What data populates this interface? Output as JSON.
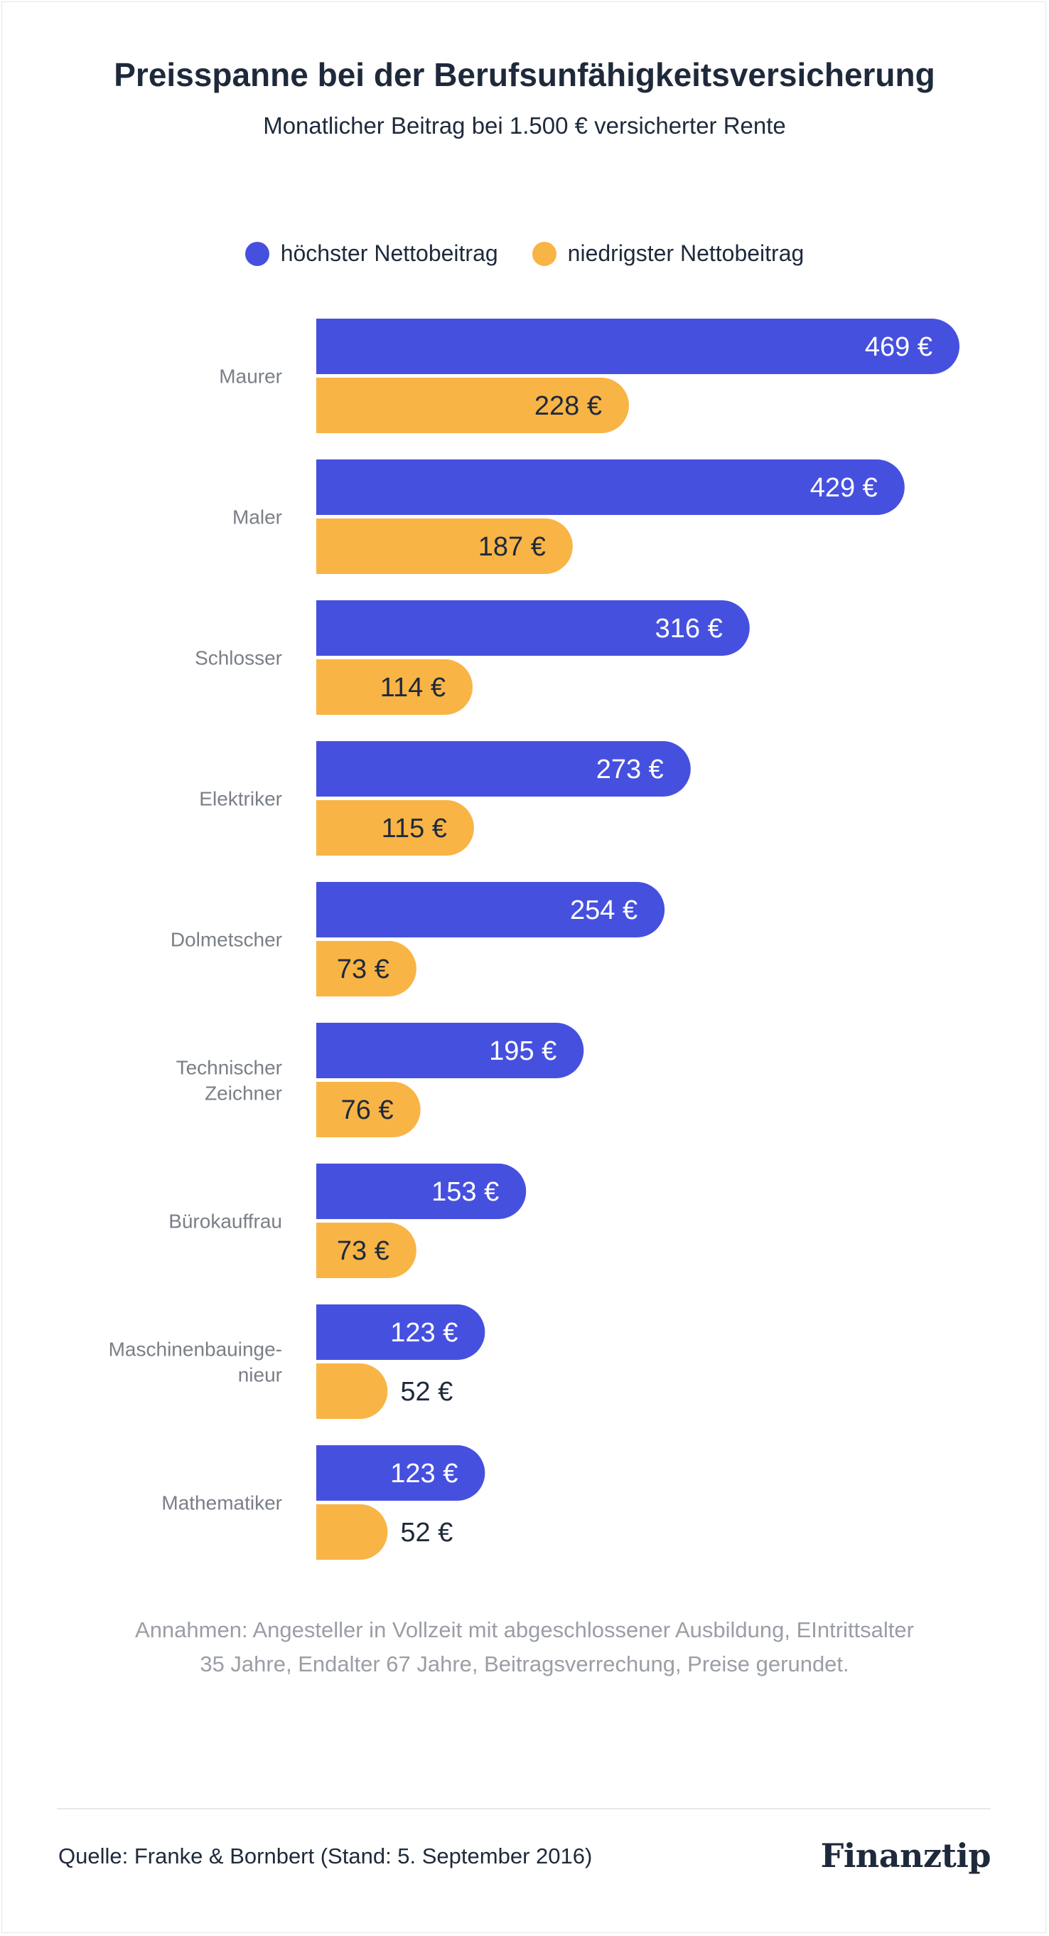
{
  "header": {
    "title": "Preisspanne bei der Berufsunfähigkeitsversicherung",
    "subtitle": "Monatlicher Beitrag bei 1.500 € versicherter Rente"
  },
  "legend": [
    {
      "label": "höchster Nettobeitrag",
      "color": "#4650df"
    },
    {
      "label": "niedrigster Nettobeitrag",
      "color": "#f9b446"
    }
  ],
  "chart_data": {
    "type": "bar",
    "orientation": "horizontal",
    "categories": [
      "Maurer",
      "Maler",
      "Schlosser",
      "Elektriker",
      "Dolmetscher",
      "Technischer Zeichner",
      "Bürokauffrau",
      "Maschinenbauinge-nieur",
      "Mathematiker"
    ],
    "category_lines": [
      [
        "Maurer"
      ],
      [
        "Maler"
      ],
      [
        "Schlosser"
      ],
      [
        "Elektriker"
      ],
      [
        "Dolmetscher"
      ],
      [
        "Technischer",
        "Zeichner"
      ],
      [
        "Bürokauffrau"
      ],
      [
        "Maschinenbauinge-",
        "nieur"
      ],
      [
        "Mathematiker"
      ]
    ],
    "series": [
      {
        "name": "höchster Nettobeitrag",
        "color": "#4650df",
        "values": [
          469,
          429,
          316,
          273,
          254,
          195,
          153,
          123,
          123
        ],
        "labels": [
          "469 €",
          "429 €",
          "316 €",
          "273 €",
          "254 €",
          "195 €",
          "153 €",
          "123 €",
          "123 €"
        ]
      },
      {
        "name": "niedrigster Nettobeitrag",
        "color": "#f9b446",
        "values": [
          228,
          187,
          114,
          115,
          73,
          76,
          73,
          52,
          52
        ],
        "labels": [
          "228 €",
          "187 €",
          "114 €",
          "115 €",
          "73 €",
          "76 €",
          "73 €",
          "52 €",
          "52 €"
        ]
      }
    ],
    "xlim": [
      0,
      469
    ],
    "grid": false,
    "legend_position": "top-center"
  },
  "footer": {
    "notes": "Annahmen: Angesteller in Vollzeit mit abgeschlossener Ausbildung, EIntrittsalter 35 Jahre, Endalter 67 Jahre, Beitragsverrechung, Preise gerundet.",
    "source": "Quelle: Franke & Bornbert (Stand: 5. September 2016)",
    "logo": "Finanztip"
  }
}
